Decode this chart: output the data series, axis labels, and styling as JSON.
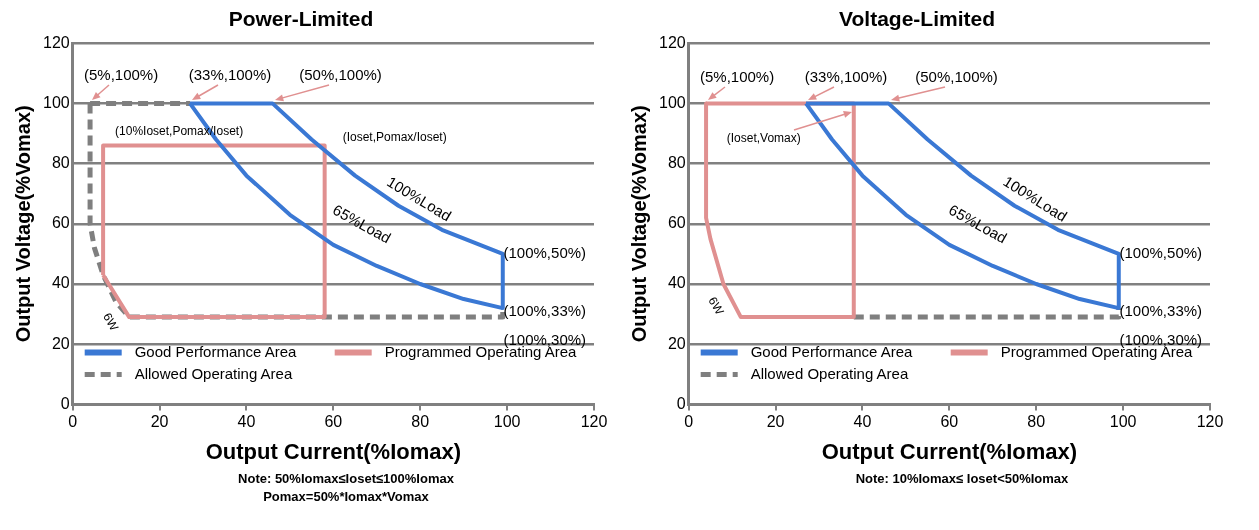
{
  "chart_data": [
    {
      "type": "line",
      "title": "Power-Limited",
      "xlabel": "Output Current(%Iomax)",
      "ylabel": "Output Voltage(%Vomax)",
      "xlim": [
        0,
        120
      ],
      "xticks": [
        0,
        20,
        40,
        60,
        80,
        100,
        120
      ],
      "ylim": [
        0,
        120
      ],
      "yticks": [
        0,
        20,
        40,
        60,
        80,
        100,
        120
      ],
      "grid": "y",
      "legend": "bottom",
      "marker": "none",
      "series": [
        {
          "name": "Good Performance Area",
          "color": "#3a78d4",
          "line_style": "solid",
          "x": [
            27,
            46,
            55,
            65,
            75,
            85,
            99,
            99
          ],
          "values": [
            100,
            100,
            88,
            76,
            66,
            58,
            50,
            32
          ]
        },
        {
          "color": "#3a78d4",
          "line_style": "solid",
          "x": [
            27,
            33,
            40,
            50,
            60,
            70,
            80,
            90,
            99
          ],
          "values": [
            100,
            88,
            76,
            63,
            53,
            46,
            40,
            35,
            32
          ]
        },
        {
          "name": "Programmed Operating Area",
          "color": "#e09090",
          "line_style": "solid",
          "x": [
            7,
            7,
            58,
            58
          ],
          "values": [
            43,
            86,
            86,
            29
          ]
        },
        {
          "color": "#e09090",
          "line_style": "solid",
          "x": [
            7,
            13,
            58
          ],
          "values": [
            43,
            29,
            29
          ]
        },
        {
          "name": "Allowed Operating Area",
          "color": "#7f7f7f",
          "line_style": "dashed",
          "x": [
            4,
            4,
            5,
            7,
            10,
            13,
            99,
            99
          ],
          "values": [
            100,
            60,
            52,
            43,
            34,
            29,
            29,
            32
          ]
        },
        {
          "color": "#7f7f7f",
          "line_style": "dashed",
          "x": [
            4,
            27
          ],
          "values": [
            100,
            100
          ]
        }
      ],
      "annotations": [
        {
          "text": "(5%,100%)",
          "x": 4,
          "y": 100
        },
        {
          "text": "(33%,100%)",
          "x": 27,
          "y": 100
        },
        {
          "text": "(50%,100%)",
          "x": 46,
          "y": 100
        },
        {
          "text": "(10%Ioset,Pomax/Ioset)",
          "x": 7,
          "y": 86
        },
        {
          "text": "(Ioset,Pomax/Ioset)",
          "x": 58,
          "y": 86
        },
        {
          "text": "100%Load",
          "x": 75,
          "y": 66
        },
        {
          "text": "65%Load",
          "x": 60,
          "y": 53
        },
        {
          "text": "6W",
          "x": 10,
          "y": 34
        },
        {
          "text": "(100%,50%)",
          "x": 99,
          "y": 50
        },
        {
          "text": "(100%,33%)",
          "x": 99,
          "y": 32
        },
        {
          "text": "(100%,30%)",
          "x": 99,
          "y": 29
        },
        "Note:  50%Iomax≤Ioset≤100%Iomax",
        "Pomax=50%*Iomax*Vomax"
      ]
    },
    {
      "type": "line",
      "title": "Voltage-Limited",
      "xlabel": "Output Current(%Iomax)",
      "ylabel": "Output Voltage(%Vomax)",
      "xlim": [
        0,
        120
      ],
      "xticks": [
        0,
        20,
        40,
        60,
        80,
        100,
        120
      ],
      "ylim": [
        0,
        120
      ],
      "yticks": [
        0,
        20,
        40,
        60,
        80,
        100,
        120
      ],
      "grid": "y",
      "legend": "bottom",
      "marker": "none",
      "series": [
        {
          "name": "Good Performance Area",
          "color": "#3a78d4",
          "line_style": "solid",
          "x": [
            27,
            46,
            55,
            65,
            75,
            85,
            99,
            99
          ],
          "values": [
            100,
            100,
            88,
            76,
            66,
            58,
            50,
            32
          ]
        },
        {
          "color": "#3a78d4",
          "line_style": "solid",
          "x": [
            27,
            33,
            40,
            50,
            60,
            70,
            80,
            90,
            99
          ],
          "values": [
            100,
            88,
            76,
            63,
            53,
            46,
            40,
            35,
            32
          ]
        },
        {
          "name": "Programmed Operating Area",
          "color": "#e09090",
          "line_style": "solid",
          "x": [
            4,
            38,
            38
          ],
          "values": [
            100,
            100,
            29
          ]
        },
        {
          "color": "#e09090",
          "line_style": "solid",
          "x": [
            4,
            4,
            5,
            8,
            12,
            38
          ],
          "values": [
            100,
            62,
            55,
            40,
            29,
            29
          ]
        },
        {
          "name": "Allowed Operating Area",
          "color": "#7f7f7f",
          "line_style": "dashed",
          "x": [
            38,
            99,
            99
          ],
          "values": [
            29,
            29,
            32
          ]
        }
      ],
      "annotations": [
        {
          "text": "(5%,100%)",
          "x": 4,
          "y": 100
        },
        {
          "text": "(33%,100%)",
          "x": 27,
          "y": 100
        },
        {
          "text": "(50%,100%)",
          "x": 46,
          "y": 100
        },
        {
          "text": "(Ioset,Vomax)",
          "x": 38,
          "y": 97
        },
        {
          "text": "100%Load",
          "x": 75,
          "y": 66
        },
        {
          "text": "65%Load",
          "x": 60,
          "y": 53
        },
        {
          "text": "6W",
          "x": 8,
          "y": 40
        },
        {
          "text": "(100%,50%)",
          "x": 99,
          "y": 50
        },
        {
          "text": "(100%,33%)",
          "x": 99,
          "y": 32
        },
        {
          "text": "(100%,30%)",
          "x": 99,
          "y": 29
        },
        "Note: 10%Iomax≤ Ioset<50%Iomax"
      ]
    }
  ]
}
